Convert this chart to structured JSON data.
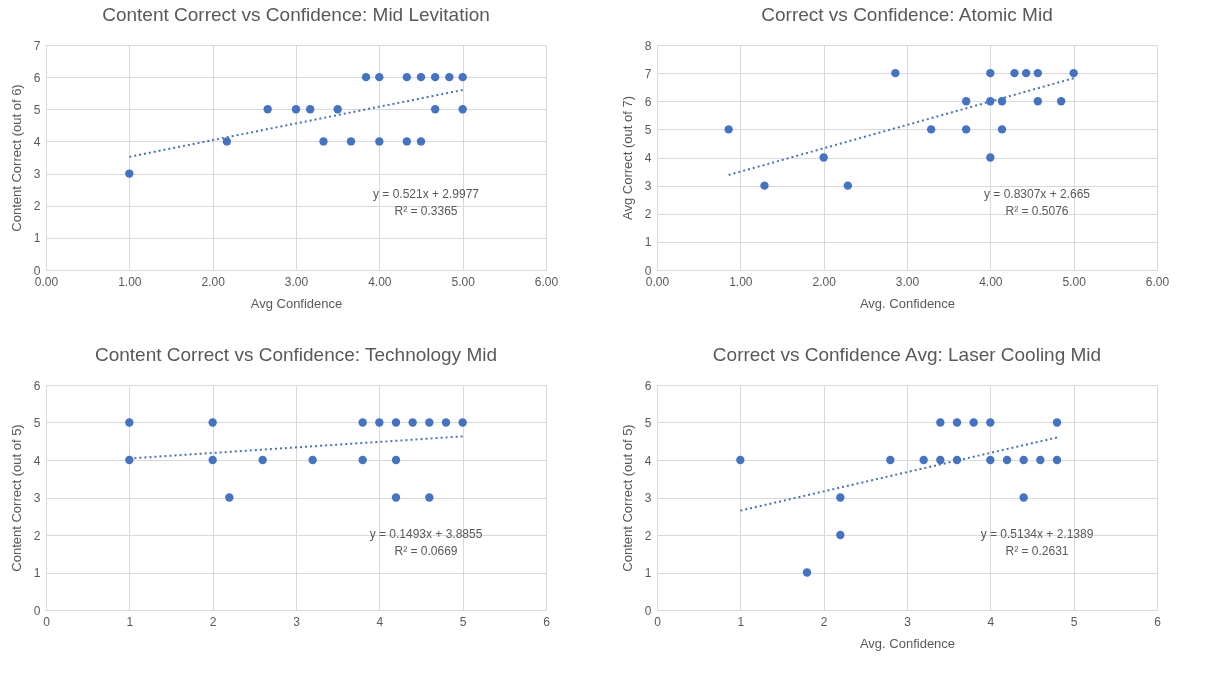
{
  "chart_data": [
    {
      "type": "scatter",
      "title": "Content Correct vs Confidence: Mid Levitation",
      "xlabel": "Avg Confidence",
      "ylabel": "Content Correct (out of 6)",
      "xlim": [
        0,
        6
      ],
      "ylim": [
        0,
        7
      ],
      "xticks": [
        {
          "value": 0,
          "label": "0.00"
        },
        {
          "value": 1,
          "label": "1.00"
        },
        {
          "value": 2,
          "label": "2.00"
        },
        {
          "value": 3,
          "label": "3.00"
        },
        {
          "value": 4,
          "label": "4.00"
        },
        {
          "value": 5,
          "label": "5.00"
        },
        {
          "value": 6,
          "label": "6.00"
        }
      ],
      "yticks": [
        0,
        1,
        2,
        3,
        4,
        5,
        6,
        7
      ],
      "grid": true,
      "series": [
        {
          "color": "#4472c4",
          "marker": "circle",
          "x": [
            3.84,
            4.0,
            4.33,
            4.5,
            4.67,
            4.84,
            5.0,
            2.66,
            3.0,
            3.17,
            3.5,
            4.67,
            5.0,
            2.17,
            3.33,
            3.66,
            4.0,
            4.33,
            4.5,
            1.0
          ],
          "values": [
            6,
            6,
            6,
            6,
            6,
            6,
            6,
            5,
            5,
            5,
            5,
            5,
            5,
            4,
            4,
            4,
            4,
            4,
            4,
            3
          ]
        },
        {
          "type": "line",
          "color": "#4472c4",
          "line_style": "dotted",
          "x": [
            1,
            5
          ],
          "values": [
            3.52,
            5.6
          ]
        }
      ],
      "annotations": [
        "y = 0.521x + 2.9977",
        "R² = 0.3365"
      ]
    },
    {
      "type": "scatter",
      "title": "Correct vs Confidence: Atomic Mid",
      "xlabel": "Avg. Confidence",
      "ylabel": "Avg Correct (out of 7)",
      "xlim": [
        0,
        6
      ],
      "ylim": [
        0,
        8
      ],
      "xticks": [
        {
          "value": 0,
          "label": "0.00"
        },
        {
          "value": 1,
          "label": "1.00"
        },
        {
          "value": 2,
          "label": "2.00"
        },
        {
          "value": 3,
          "label": "3.00"
        },
        {
          "value": 4,
          "label": "4.00"
        },
        {
          "value": 5,
          "label": "5.00"
        },
        {
          "value": 6,
          "label": "6.00"
        }
      ],
      "yticks": [
        0,
        1,
        2,
        3,
        4,
        5,
        6,
        7,
        8
      ],
      "grid": true,
      "series": [
        {
          "color": "#4472c4",
          "marker": "circle",
          "x": [
            2.86,
            4.0,
            4.29,
            4.43,
            4.57,
            5.0,
            3.71,
            4.0,
            4.14,
            4.57,
            4.85,
            0.86,
            3.29,
            3.71,
            4.14,
            2.0,
            4.0,
            1.29,
            2.29
          ],
          "values": [
            7,
            7,
            7,
            7,
            7,
            7,
            6,
            6,
            6,
            6,
            6,
            5,
            5,
            5,
            5,
            4,
            4,
            3,
            3
          ]
        },
        {
          "type": "line",
          "color": "#4472c4",
          "line_style": "dotted",
          "x": [
            0.86,
            5
          ],
          "values": [
            3.38,
            6.82
          ]
        }
      ],
      "annotations": [
        "y = 0.8307x + 2.665",
        "R² = 0.5076"
      ]
    },
    {
      "type": "scatter",
      "title": "Content Correct  vs Confidence: Technology Mid",
      "ylabel": "Content Correct (out of 5)",
      "xlim": [
        0,
        6
      ],
      "ylim": [
        0,
        6
      ],
      "xticks": [
        0,
        1,
        2,
        3,
        4,
        5,
        6
      ],
      "yticks": [
        0,
        1,
        2,
        3,
        4,
        5,
        6
      ],
      "grid": true,
      "series": [
        {
          "color": "#4472c4",
          "marker": "circle",
          "x": [
            1,
            2,
            3.8,
            4.0,
            4.2,
            4.4,
            4.6,
            4.8,
            5.0,
            1,
            2,
            2.6,
            3.2,
            3.8,
            4.2,
            2.2,
            4.2,
            4.6
          ],
          "values": [
            5,
            5,
            5,
            5,
            5,
            5,
            5,
            5,
            5,
            4,
            4,
            4,
            4,
            4,
            4,
            3,
            3,
            3
          ]
        },
        {
          "type": "line",
          "color": "#4472c4",
          "line_style": "dotted",
          "x": [
            1,
            5
          ],
          "values": [
            4.04,
            4.63
          ]
        }
      ],
      "annotations": [
        "y = 0.1493x + 3.8855",
        "R² = 0.0669"
      ]
    },
    {
      "type": "scatter",
      "title": "Correct vs Confidence Avg: Laser Cooling Mid",
      "xlabel": "Avg. Confidence",
      "ylabel": "Content Correct (out of 5)",
      "xlim": [
        0,
        6
      ],
      "ylim": [
        0,
        6
      ],
      "xticks": [
        0,
        1,
        2,
        3,
        4,
        5,
        6
      ],
      "yticks": [
        0,
        1,
        2,
        3,
        4,
        5,
        6
      ],
      "grid": true,
      "series": [
        {
          "color": "#4472c4",
          "marker": "circle",
          "x": [
            3.4,
            3.6,
            3.8,
            4.0,
            4.8,
            1.0,
            2.8,
            3.2,
            3.4,
            3.6,
            4.0,
            4.2,
            4.4,
            4.6,
            4.8,
            2.2,
            4.4,
            2.2,
            1.8
          ],
          "values": [
            5,
            5,
            5,
            5,
            5,
            4,
            4,
            4,
            4,
            4,
            4,
            4,
            4,
            4,
            4,
            3,
            3,
            2,
            1
          ]
        },
        {
          "type": "line",
          "color": "#4472c4",
          "line_style": "dotted",
          "x": [
            1,
            4.8
          ],
          "values": [
            2.65,
            4.6
          ]
        }
      ],
      "annotations": [
        "y = 0.5134x + 2.1389",
        "R² = 0.2631"
      ]
    }
  ]
}
